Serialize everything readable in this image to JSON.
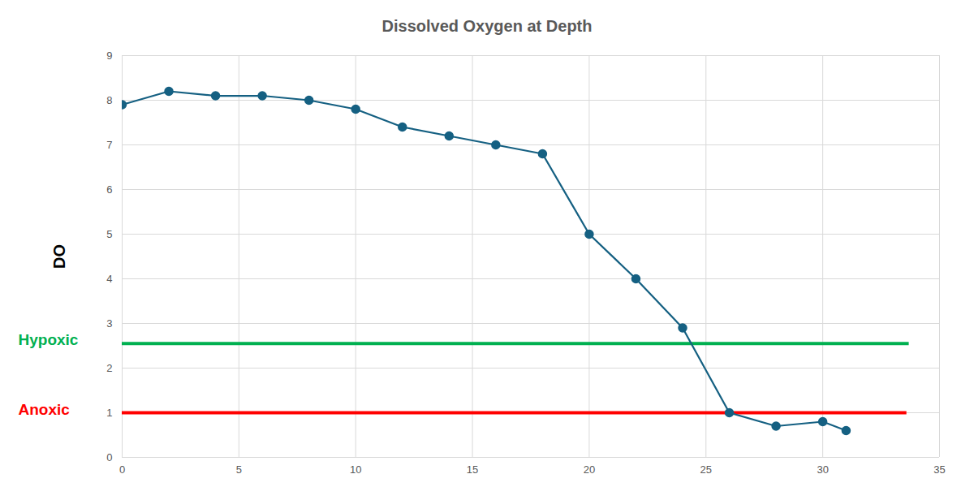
{
  "chart_data": {
    "type": "line",
    "title": "Dissolved Oxygen at Depth",
    "y_label": "DO",
    "x": [
      0,
      2,
      4,
      6,
      8,
      10,
      12,
      14,
      16,
      18,
      20,
      22,
      24,
      26,
      28,
      30,
      31
    ],
    "values": [
      7.9,
      8.2,
      8.1,
      8.1,
      8.0,
      7.8,
      7.4,
      7.2,
      7.0,
      6.8,
      5.0,
      4.0,
      2.9,
      1.0,
      0.7,
      0.8,
      0.6
    ],
    "color": "#156082",
    "marker": "circle",
    "xlim": [
      0,
      35
    ],
    "xticks": [
      0,
      5,
      10,
      15,
      20,
      25,
      30,
      35
    ],
    "ylim": [
      0,
      9
    ],
    "yticks": [
      0,
      1,
      2,
      3,
      4,
      5,
      6,
      7,
      8,
      9
    ],
    "grid": true,
    "reference_lines": [
      {
        "label": "Hypoxic",
        "y": 2.55,
        "x_end": 33.7,
        "color": "#00b050"
      },
      {
        "label": "Anoxic",
        "y": 1.0,
        "x_end": 33.6,
        "color": "#ff0000"
      }
    ]
  }
}
